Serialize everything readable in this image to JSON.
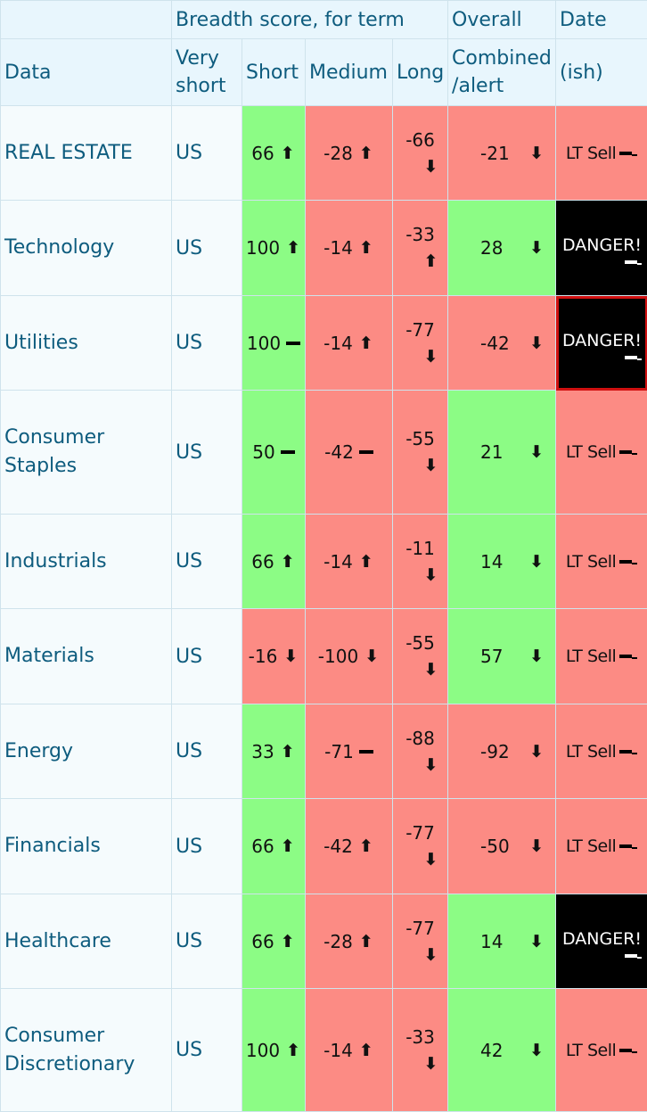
{
  "header": {
    "data": "Data",
    "breadth": "Breadth score, for term",
    "overall": "Overall",
    "date": "Date",
    "very_short": "Very short",
    "short": "Short",
    "medium": "Medium",
    "long": "Long",
    "combined": "Combined /alert",
    "ish": "(ish)"
  },
  "rows": [
    {
      "name": "REAL ESTATE",
      "region": "US",
      "short": "66",
      "short_dir": "up",
      "short_color": "green",
      "medium": "-28",
      "medium_dir": "up",
      "medium_color": "red",
      "long": "-66",
      "long_dir": "down",
      "long_color": "red",
      "combined": "-21",
      "combined_dir": "down",
      "combined_color": "red",
      "date": "LT Sell",
      "date_type": "sell"
    },
    {
      "name": "Technology",
      "region": "US",
      "short": "100",
      "short_dir": "up",
      "short_color": "green",
      "medium": "-14",
      "medium_dir": "up",
      "medium_color": "red",
      "long": "-33",
      "long_dir": "up",
      "long_color": "red",
      "combined": "28",
      "combined_dir": "down",
      "combined_color": "green",
      "date": "DANGER!",
      "date_type": "danger"
    },
    {
      "name": "Utilities",
      "region": "US",
      "short": "100",
      "short_dir": "flat",
      "short_color": "green",
      "medium": "-14",
      "medium_dir": "up",
      "medium_color": "red",
      "long": "-77",
      "long_dir": "down",
      "long_color": "red",
      "combined": "-42",
      "combined_dir": "down",
      "combined_color": "red",
      "date": "DANGER!",
      "date_type": "danger-framed"
    },
    {
      "name": "Consumer Staples",
      "region": "US",
      "short": "50",
      "short_dir": "flat",
      "short_color": "green",
      "medium": "-42",
      "medium_dir": "flat",
      "medium_color": "red",
      "long": "-55",
      "long_dir": "down",
      "long_color": "red",
      "combined": "21",
      "combined_dir": "down",
      "combined_color": "green",
      "date": "LT Sell",
      "date_type": "sell"
    },
    {
      "name": "Industrials",
      "region": "US",
      "short": "66",
      "short_dir": "up",
      "short_color": "green",
      "medium": "-14",
      "medium_dir": "up",
      "medium_color": "red",
      "long": "-11",
      "long_dir": "down",
      "long_color": "red",
      "combined": "14",
      "combined_dir": "down",
      "combined_color": "green",
      "date": "LT Sell",
      "date_type": "sell"
    },
    {
      "name": "Materials",
      "region": "US",
      "short": "-16",
      "short_dir": "down",
      "short_color": "red",
      "medium": "-100",
      "medium_dir": "down",
      "medium_color": "red",
      "long": "-55",
      "long_dir": "down",
      "long_color": "red",
      "combined": "57",
      "combined_dir": "down",
      "combined_color": "green",
      "date": "LT Sell",
      "date_type": "sell"
    },
    {
      "name": "Energy",
      "region": "US",
      "short": "33",
      "short_dir": "up",
      "short_color": "green",
      "medium": "-71",
      "medium_dir": "flat",
      "medium_color": "red",
      "long": "-88",
      "long_dir": "down",
      "long_color": "red",
      "combined": "-92",
      "combined_dir": "down",
      "combined_color": "red",
      "date": "LT Sell",
      "date_type": "sell"
    },
    {
      "name": "Financials",
      "region": "US",
      "short": "66",
      "short_dir": "up",
      "short_color": "green",
      "medium": "-42",
      "medium_dir": "up",
      "medium_color": "red",
      "long": "-77",
      "long_dir": "down",
      "long_color": "red",
      "combined": "-50",
      "combined_dir": "down",
      "combined_color": "red",
      "date": "LT Sell",
      "date_type": "sell"
    },
    {
      "name": "Healthcare",
      "region": "US",
      "short": "66",
      "short_dir": "up",
      "short_color": "green",
      "medium": "-28",
      "medium_dir": "up",
      "medium_color": "red",
      "long": "-77",
      "long_dir": "down",
      "long_color": "red",
      "combined": "14",
      "combined_dir": "down",
      "combined_color": "green",
      "date": "DANGER!",
      "date_type": "danger"
    },
    {
      "name": "Consumer Discretionary",
      "region": "US",
      "short": "100",
      "short_dir": "up",
      "short_color": "green",
      "medium": "-14",
      "medium_dir": "up",
      "medium_color": "red",
      "long": "-33",
      "long_dir": "down",
      "long_color": "red",
      "combined": "42",
      "combined_dir": "down",
      "combined_color": "green",
      "date": "LT Sell",
      "date_type": "sell"
    }
  ]
}
